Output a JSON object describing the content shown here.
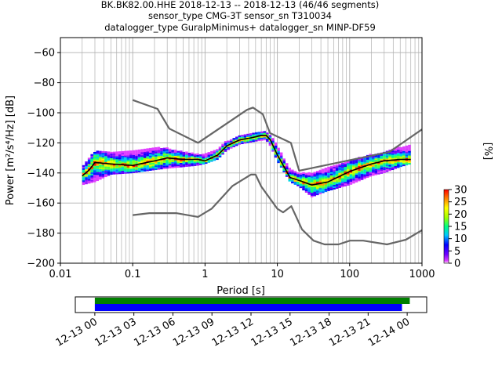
{
  "title": {
    "line1": "BK.BK82.00.HHE   2018-12-13 -- 2018-12-13  (46/46 segments)",
    "line2": "sensor_type CMG-3T sensor_sn T310034",
    "line3": "datalogger_type GuralpMinimus+ datalogger_sn MINP-DF59"
  },
  "chart_data": {
    "type": "heatmap",
    "xlabel": "Period [s]",
    "ylabel": "Power [m²/s⁴/Hz] [dB]",
    "xscale": "log",
    "xlim": [
      0.01,
      1000
    ],
    "ylim": [
      -200,
      -50
    ],
    "xticks": [
      {
        "value": 0.01,
        "label": "0.01"
      },
      {
        "value": 0.1,
        "label": "0.1"
      },
      {
        "value": 1,
        "label": "1"
      },
      {
        "value": 10,
        "label": "10"
      },
      {
        "value": 100,
        "label": "100"
      },
      {
        "value": 1000,
        "label": "1000"
      }
    ],
    "yticks": [
      -60,
      -80,
      -100,
      -120,
      -140,
      -160,
      -180,
      -200
    ],
    "grid": true,
    "colorbar": {
      "label": "[%]",
      "range": [
        0,
        30
      ],
      "ticks": [
        0,
        5,
        10,
        15,
        20,
        25,
        30
      ]
    },
    "mean_curve": {
      "period": [
        0.02,
        0.025,
        0.03,
        0.05,
        0.1,
        0.2,
        0.3,
        0.5,
        0.8,
        1,
        1.5,
        2,
        3,
        4,
        5,
        6,
        7,
        8,
        10,
        15,
        20,
        30,
        50,
        100,
        200,
        300,
        500,
        700
      ],
      "power": [
        -142,
        -138,
        -133,
        -134,
        -135,
        -132,
        -130,
        -131,
        -131,
        -132,
        -128,
        -122,
        -118,
        -117,
        -116,
        -115,
        -115,
        -118,
        -128,
        -143,
        -145,
        -148,
        -146,
        -139,
        -134,
        -132,
        -131,
        -131
      ]
    },
    "high_noise_model": {
      "period": [
        0.1,
        0.22,
        0.32,
        0.8,
        3.8,
        4.6,
        6.3,
        7.9,
        15.4,
        20,
        354.8,
        1000
      ],
      "power": [
        -91.5,
        -97.4,
        -110.5,
        -120,
        -98,
        -96.5,
        -101,
        -113.5,
        -120,
        -138.5,
        -126,
        -111
      ]
    },
    "low_noise_model": {
      "period": [
        0.1,
        0.17,
        0.4,
        0.8,
        1.24,
        2.4,
        4.3,
        5,
        6,
        10,
        12,
        15.6,
        21.9,
        31.6,
        45,
        70,
        101,
        154,
        328,
        600,
        1000
      ],
      "power": [
        -168,
        -166.7,
        -166.7,
        -169.2,
        -163.7,
        -148.6,
        -141.1,
        -141.1,
        -149,
        -163.8,
        -166.2,
        -162.1,
        -177.5,
        -185,
        -187.5,
        -187.5,
        -185,
        -185,
        -187.5,
        -184.4,
        -178
      ]
    },
    "psd_cloud": [
      {
        "period": 0.02,
        "min": -148,
        "max": -136
      },
      {
        "period": 0.03,
        "min": -146,
        "max": -126
      },
      {
        "period": 0.05,
        "min": -141,
        "max": -126
      },
      {
        "period": 0.1,
        "min": -140,
        "max": -126
      },
      {
        "period": 0.2,
        "min": -138,
        "max": -123
      },
      {
        "period": 0.3,
        "min": -137,
        "max": -124
      },
      {
        "period": 0.5,
        "min": -136,
        "max": -126
      },
      {
        "period": 0.8,
        "min": -135,
        "max": -128
      },
      {
        "period": 1,
        "min": -134,
        "max": -128
      },
      {
        "period": 1.5,
        "min": -131,
        "max": -124
      },
      {
        "period": 2,
        "min": -125,
        "max": -119
      },
      {
        "period": 3,
        "min": -121,
        "max": -115
      },
      {
        "period": 5,
        "min": -119,
        "max": -113
      },
      {
        "period": 7,
        "min": -118,
        "max": -113
      },
      {
        "period": 8,
        "min": -122,
        "max": -115
      },
      {
        "period": 10,
        "min": -132,
        "max": -122
      },
      {
        "period": 15,
        "min": -146,
        "max": -138
      },
      {
        "period": 20,
        "min": -149,
        "max": -140
      },
      {
        "period": 30,
        "min": -156,
        "max": -140
      },
      {
        "period": 50,
        "min": -152,
        "max": -137
      },
      {
        "period": 100,
        "min": -148,
        "max": -132
      },
      {
        "period": 200,
        "min": -142,
        "max": -128
      },
      {
        "period": 300,
        "min": -140,
        "max": -126
      },
      {
        "period": 500,
        "min": -136,
        "max": -123
      },
      {
        "period": 700,
        "min": -134,
        "max": -122
      }
    ],
    "colors": {
      "mean_curve": "#000000",
      "noise_models": "#666666",
      "grid": "#b0b0b0"
    }
  },
  "timeline": {
    "ticks": [
      "12-13 00",
      "12-13 03",
      "12-13 06",
      "12-13 09",
      "12-13 12",
      "12-13 15",
      "12-13 18",
      "12-13 21",
      "12-14 00"
    ],
    "range_hours": [
      -1.5,
      25.5
    ],
    "data_available": {
      "start_hour": 0,
      "end_hour": 24.2,
      "color": "#008000"
    },
    "psd_computed": {
      "start_hour": 0,
      "end_hour": 23.6,
      "color": "#0000ff"
    }
  }
}
